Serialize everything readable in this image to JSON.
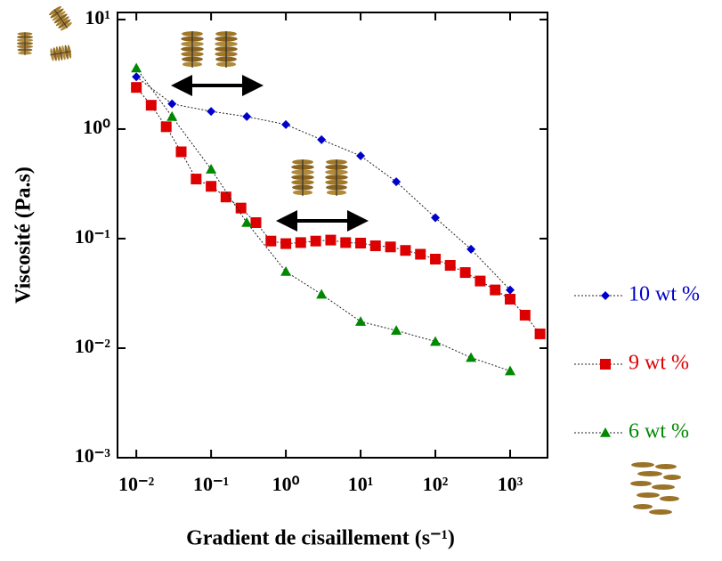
{
  "chart_data": {
    "type": "scatter",
    "x_label": "Gradient de cisaillement (s⁻¹)",
    "y_label": "Viscosité (Pa.s)",
    "xscale": "log",
    "yscale": "log",
    "xlim": [
      0.0056,
      3162
    ],
    "ylim": [
      0.001,
      11.6
    ],
    "xticks": [
      {
        "value": 0.01,
        "label": "10⁻²"
      },
      {
        "value": 0.1,
        "label": "10⁻¹"
      },
      {
        "value": 1,
        "label": "10⁰"
      },
      {
        "value": 10,
        "label": "10¹"
      },
      {
        "value": 100,
        "label": "10²"
      },
      {
        "value": 1000,
        "label": "10³"
      }
    ],
    "yticks": [
      {
        "value": 0.001,
        "label": "10⁻³"
      },
      {
        "value": 0.01,
        "label": "10⁻²"
      },
      {
        "value": 0.1,
        "label": "10⁻¹"
      },
      {
        "value": 1,
        "label": "10⁰"
      },
      {
        "value": 10,
        "label": "10¹"
      }
    ],
    "series": [
      {
        "name": "10 wt %",
        "color": "#0000cc",
        "marker": "diamond",
        "x": [
          0.01,
          0.03,
          0.1,
          0.3,
          1,
          3,
          10,
          30,
          100,
          300,
          1000
        ],
        "values": [
          3.0,
          1.7,
          1.45,
          1.3,
          1.1,
          0.8,
          0.57,
          0.33,
          0.155,
          0.08,
          0.034
        ]
      },
      {
        "name": "9 wt %",
        "color": "#dd0000",
        "marker": "square",
        "x": [
          0.01,
          0.0158,
          0.0251,
          0.0398,
          0.0631,
          0.1,
          0.158,
          0.251,
          0.398,
          0.631,
          1,
          1.58,
          2.51,
          3.98,
          6.31,
          10,
          15.8,
          25.1,
          39.8,
          63.1,
          100,
          158,
          251,
          398,
          631,
          1000,
          1585,
          2512
        ],
        "values": [
          2.4,
          1.65,
          1.05,
          0.62,
          0.35,
          0.3,
          0.24,
          0.19,
          0.14,
          0.095,
          0.09,
          0.092,
          0.095,
          0.097,
          0.092,
          0.091,
          0.086,
          0.084,
          0.078,
          0.072,
          0.065,
          0.057,
          0.049,
          0.041,
          0.034,
          0.028,
          0.02,
          0.0135
        ]
      },
      {
        "name": "6 wt %",
        "color": "#008800",
        "marker": "triangle",
        "x": [
          0.01,
          0.03,
          0.1,
          0.3,
          1,
          3,
          10,
          30,
          100,
          300,
          1000
        ],
        "values": [
          3.6,
          1.3,
          0.43,
          0.14,
          0.05,
          0.031,
          0.0175,
          0.0145,
          0.0115,
          0.0082,
          0.0062
        ]
      }
    ]
  }
}
